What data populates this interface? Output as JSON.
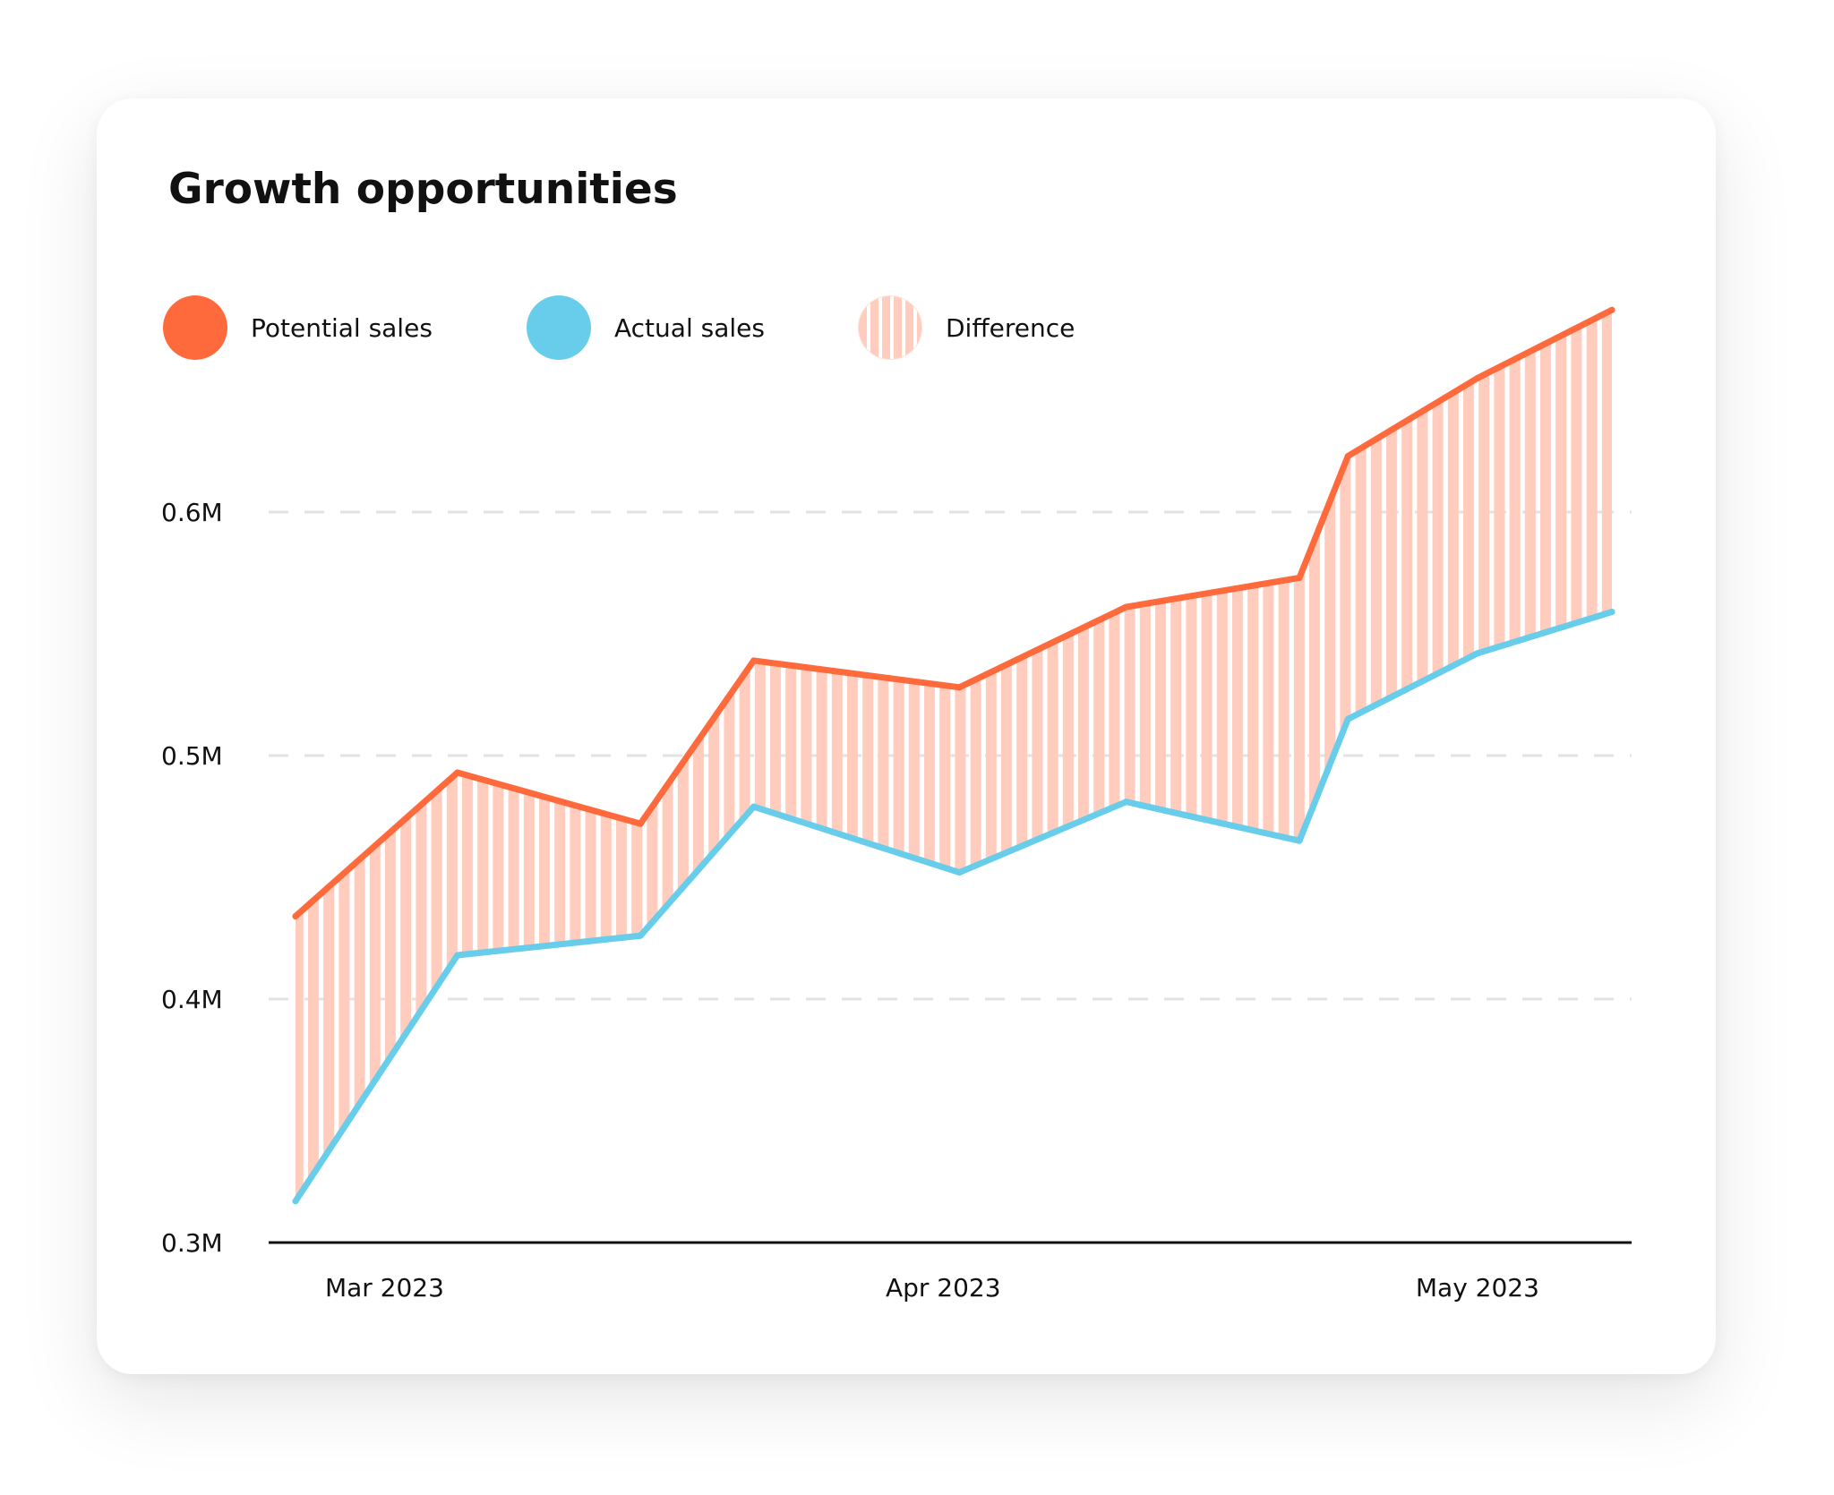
{
  "colors": {
    "potential": "#ff6a3d",
    "actual": "#67cdea",
    "difference": "#ffccbd",
    "grid": "#e3e3e3",
    "axis": "#111111"
  },
  "chart_data": {
    "type": "line",
    "title": "Growth opportunities",
    "legend": [
      {
        "name": "Potential sales",
        "marker": "circle"
      },
      {
        "name": "Actual sales",
        "marker": "circle"
      },
      {
        "name": "Difference",
        "marker": "striped-circle"
      }
    ],
    "x": [
      0,
      1,
      2,
      3,
      4,
      5,
      6,
      7,
      8,
      9
    ],
    "x_ticks": [
      {
        "pos": 0.55,
        "label": "Mar 2023"
      },
      {
        "pos": 4.0,
        "label": "Apr 2023"
      },
      {
        "pos": 7.3,
        "label": "May 2023"
      }
    ],
    "series": [
      {
        "name": "Potential sales",
        "values": [
          0.434,
          0.493,
          0.472,
          0.539,
          0.528,
          0.561,
          0.573,
          0.623,
          0.655,
          0.683
        ]
      },
      {
        "name": "Actual sales",
        "values": [
          0.317,
          0.418,
          0.426,
          0.479,
          0.452,
          0.481,
          0.465,
          0.515,
          0.542,
          0.559
        ]
      }
    ],
    "x_positions": [
      0,
      1.0,
      2.13,
      2.83,
      4.1,
      5.13,
      6.2,
      6.5,
      7.3,
      8.13
    ],
    "difference": {
      "name": "Difference",
      "between": [
        "Potential sales",
        "Actual sales"
      ]
    },
    "ylim": [
      0.3,
      0.7
    ],
    "y_ticks": [
      {
        "value": 0.3,
        "label": "0.3M"
      },
      {
        "value": 0.4,
        "label": "0.4M"
      },
      {
        "value": 0.5,
        "label": "0.5M"
      },
      {
        "value": 0.6,
        "label": "0.6M"
      }
    ],
    "grid": true,
    "xlabel": "",
    "ylabel": ""
  }
}
